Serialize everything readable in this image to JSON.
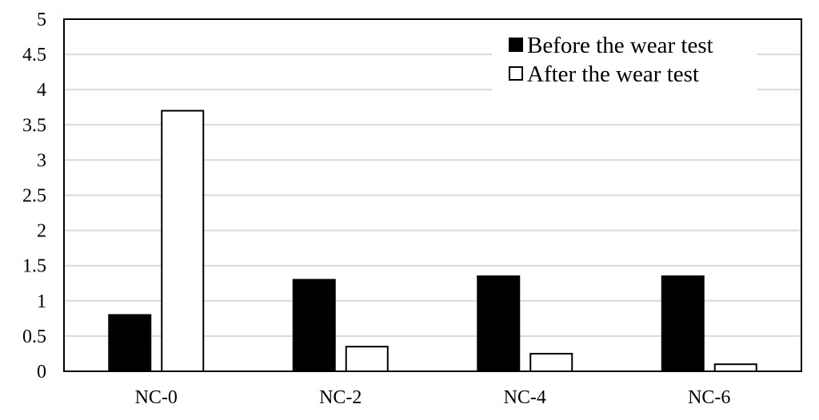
{
  "chart_data": {
    "type": "bar",
    "title": "",
    "xlabel": "",
    "ylabel": "",
    "categories": [
      "NC-0",
      "NC-2",
      "NC-4",
      "NC-6"
    ],
    "series": [
      {
        "name": "Before the wear test",
        "values": [
          0.8,
          1.3,
          1.35,
          1.35
        ],
        "fill": "#000000",
        "stroke": "#000000"
      },
      {
        "name": "After the wear test",
        "values": [
          3.7,
          0.35,
          0.25,
          0.1
        ],
        "fill": "#ffffff",
        "stroke": "#000000"
      }
    ],
    "ylim": [
      0,
      5
    ],
    "yticks": [
      0,
      0.5,
      1,
      1.5,
      2,
      2.5,
      3,
      3.5,
      4,
      4.5,
      5
    ],
    "ytick_labels": [
      "0",
      "0.5",
      "1",
      "1.5",
      "2",
      "2.5",
      "3",
      "3.5",
      "4",
      "4.5",
      "5"
    ],
    "grid": true,
    "grid_color": "#d9d9d9",
    "legend_position": "top-right"
  }
}
